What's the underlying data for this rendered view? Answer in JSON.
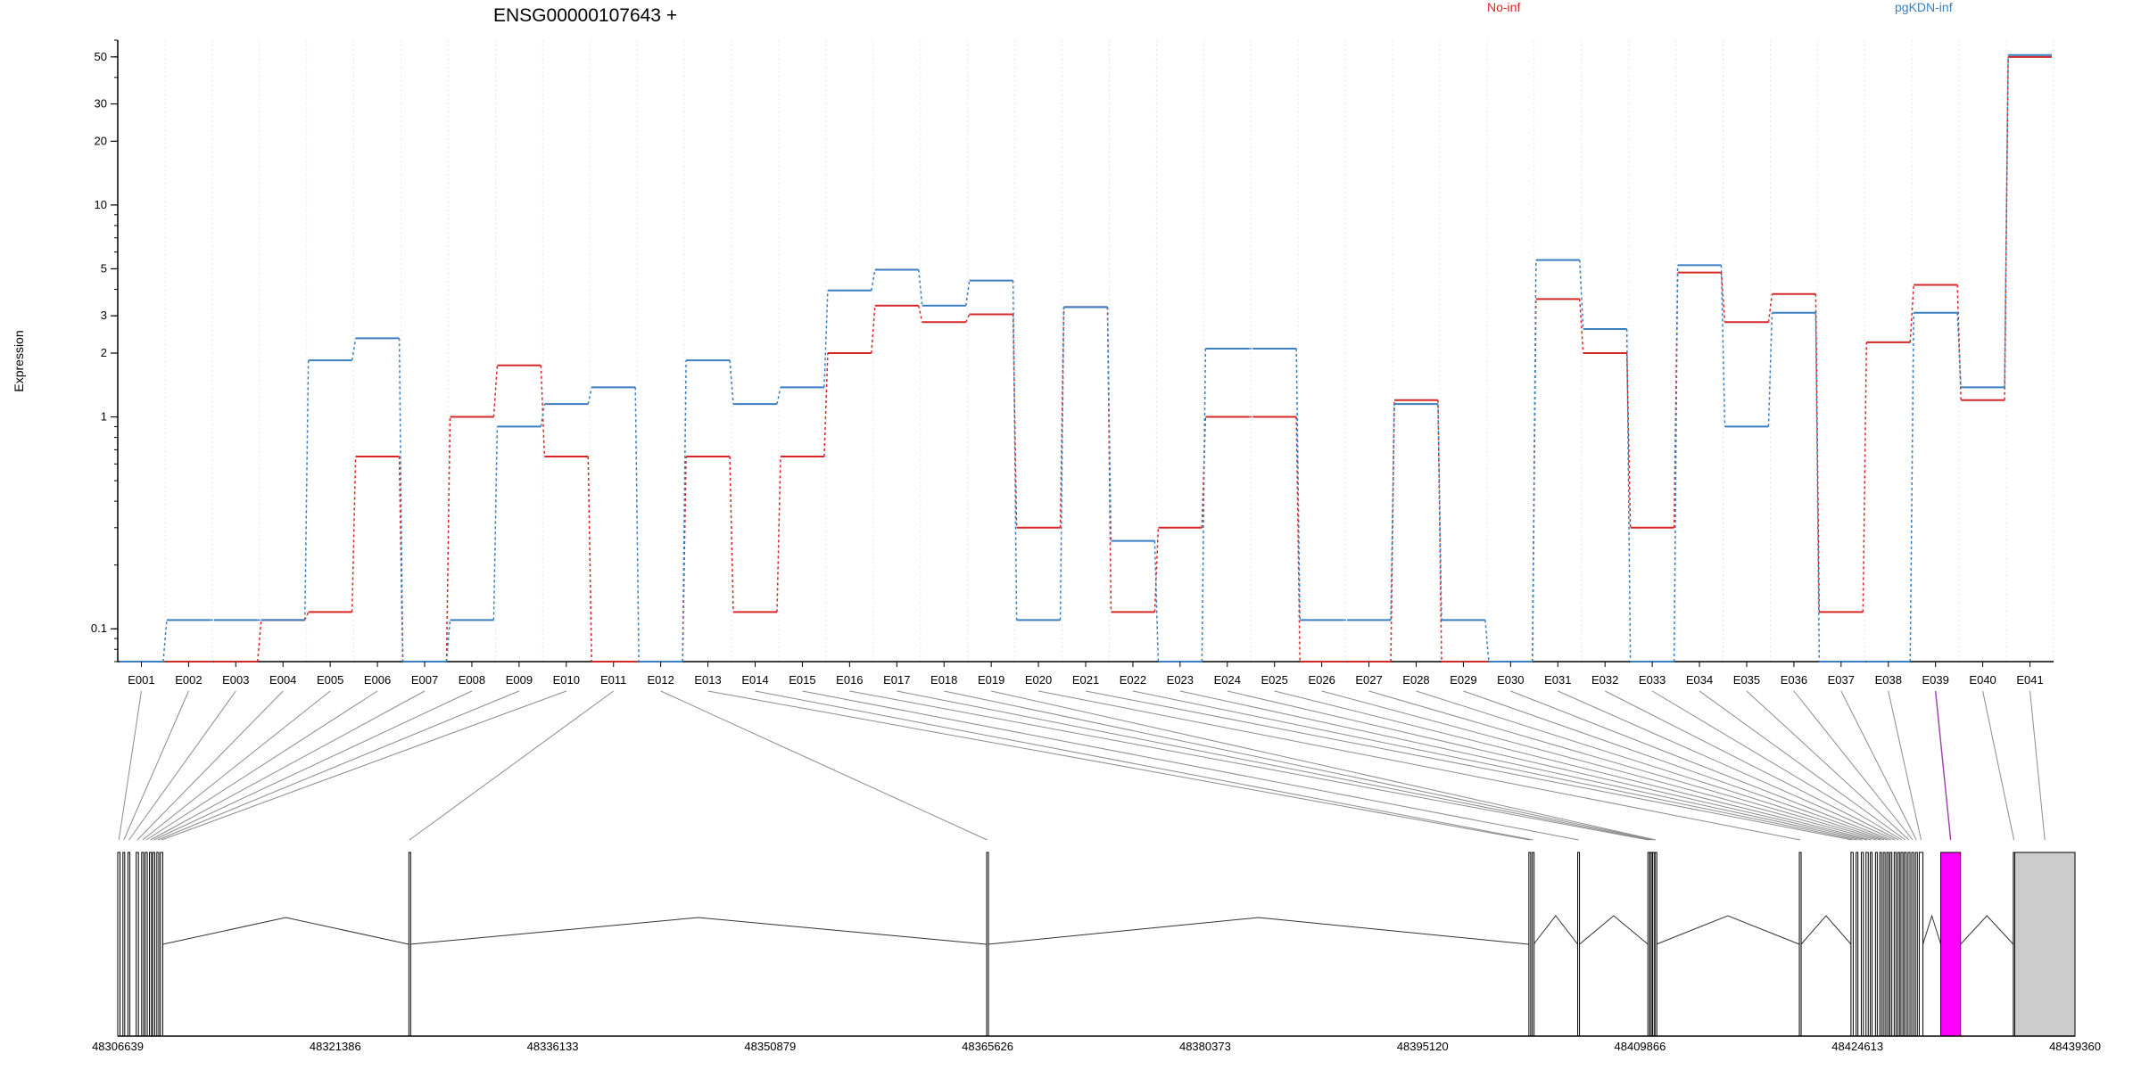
{
  "chart_data": {
    "type": "line",
    "title": "ENSG00000107643 +",
    "ylabel": "Expression",
    "y_scale": "log",
    "ylim": [
      0.07,
      60
    ],
    "y_ticks": [
      0.1,
      1,
      2,
      3,
      5,
      10,
      20,
      30,
      50
    ],
    "y_tick_labels": [
      "0.1",
      "1",
      "2",
      "3",
      "5",
      "10",
      "20",
      "30",
      "50"
    ],
    "grid": "vertical-dotted",
    "legend": {
      "placement": "top-right",
      "entries": [
        "No-inf",
        "pgKDN-inf"
      ]
    },
    "categories": [
      "E001",
      "E002",
      "E003",
      "E004",
      "E005",
      "E006",
      "E007",
      "E008",
      "E009",
      "E010",
      "E011",
      "E012",
      "E013",
      "E014",
      "E015",
      "E016",
      "E017",
      "E018",
      "E019",
      "E020",
      "E021",
      "E022",
      "E023",
      "E024",
      "E025",
      "E026",
      "E027",
      "E028",
      "E029",
      "E030",
      "E031",
      "E032",
      "E033",
      "E034",
      "E035",
      "E036",
      "E037",
      "E038",
      "E039",
      "E040",
      "E041"
    ],
    "series": [
      {
        "name": "No-inf",
        "color": "#d62728",
        "values": [
          0.07,
          0.07,
          0.07,
          0.11,
          0.12,
          0.65,
          0.07,
          1.0,
          1.75,
          0.65,
          0.07,
          0.07,
          0.65,
          0.12,
          0.65,
          2.0,
          3.35,
          2.8,
          3.05,
          0.3,
          3.3,
          0.12,
          0.3,
          1.0,
          1.0,
          0.07,
          0.07,
          1.2,
          0.07,
          0.07,
          3.6,
          2.0,
          0.3,
          4.8,
          2.8,
          3.8,
          0.12,
          2.25,
          4.2,
          1.2,
          50
        ]
      },
      {
        "name": "pgKDN-inf",
        "color": "#3a7fc1",
        "values": [
          0.07,
          0.11,
          0.11,
          0.11,
          1.85,
          2.35,
          0.07,
          0.11,
          0.9,
          1.15,
          1.38,
          0.07,
          1.85,
          1.15,
          1.38,
          3.95,
          4.95,
          3.35,
          4.4,
          0.11,
          3.3,
          0.26,
          0.07,
          2.1,
          2.1,
          0.11,
          0.11,
          1.15,
          0.11,
          0.07,
          5.5,
          2.6,
          0.07,
          5.2,
          0.9,
          3.1,
          0.07,
          0.07,
          3.1,
          1.38,
          51
        ]
      }
    ],
    "gene_model": {
      "coord_ticks": [
        "48306639",
        "48321386",
        "48336133",
        "48350879",
        "48365626",
        "48380373",
        "48395120",
        "48409866",
        "48424613",
        "48439360"
      ],
      "highlighted_exon": "E039",
      "highlight_color": "#ff00ff",
      "exon_fill": "#cccccc"
    }
  }
}
